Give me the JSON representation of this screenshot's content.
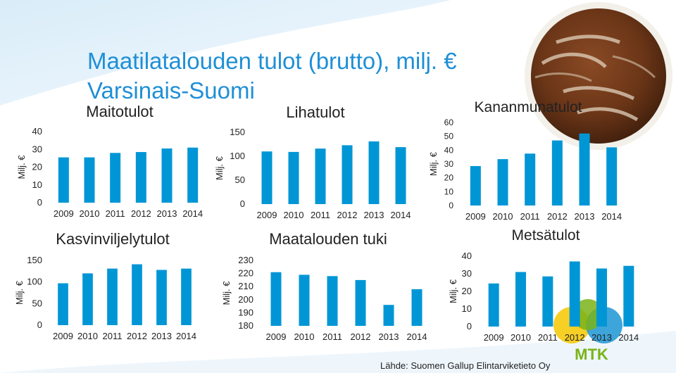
{
  "page": {
    "title_line1": "Maatilatalouden tulot (brutto), milj. €",
    "title_line2": "Varsinais-Suomi",
    "source": "Lähde: Suomen Gallup Elintarviketieto Oy",
    "logo_text": "MTK"
  },
  "colors": {
    "bar": "#0096d6",
    "title": "#1f8fd6",
    "slide_bg": "#eaf4fb",
    "logo_green": "#7ab317",
    "logo_yellow": "#f6c800",
    "logo_blue": "#1c95d4"
  },
  "chart_data": [
    {
      "type": "bar",
      "title": "Maitotulot",
      "ylabel": "Milj. €",
      "categories": [
        "2009",
        "2010",
        "2011",
        "2012",
        "2013",
        "2014"
      ],
      "values": [
        25.5,
        25.5,
        28,
        28.5,
        30.5,
        31
      ],
      "ylim": [
        0,
        40
      ],
      "yticks": [
        0,
        10,
        20,
        30,
        40
      ]
    },
    {
      "type": "bar",
      "title": "Lihatulot",
      "ylabel": "Milj. €",
      "categories": [
        "2009",
        "2010",
        "2011",
        "2012",
        "2013",
        "2014"
      ],
      "values": [
        110,
        109,
        116,
        123,
        131,
        119
      ],
      "ylim": [
        0,
        150
      ],
      "yticks": [
        0,
        50,
        100,
        150
      ]
    },
    {
      "type": "bar",
      "title": "Kananmunatulot",
      "ylabel": "Milj. €",
      "categories": [
        "2009",
        "2010",
        "2011",
        "2012",
        "2013",
        "2014"
      ],
      "values": [
        28.5,
        33.5,
        37.5,
        47,
        52,
        42
      ],
      "ylim": [
        0,
        60
      ],
      "yticks": [
        0,
        10,
        20,
        30,
        40,
        50,
        60
      ]
    },
    {
      "type": "bar",
      "title": "Kasvinviljelytulot",
      "ylabel": "Milj. €",
      "categories": [
        "2009",
        "2010",
        "2011",
        "2012",
        "2013",
        "2014"
      ],
      "values": [
        97,
        120,
        131,
        141,
        128,
        131
      ],
      "ylim": [
        0,
        150
      ],
      "yticks": [
        0,
        50,
        100,
        150
      ]
    },
    {
      "type": "bar",
      "title": "Maatalouden tuki",
      "ylabel": "Milj. €",
      "categories": [
        "2009",
        "2010",
        "2011",
        "2012",
        "2013",
        "2014"
      ],
      "values": [
        221,
        219,
        218,
        215,
        196,
        208
      ],
      "ylim": [
        180,
        230
      ],
      "yticks": [
        180,
        190,
        200,
        210,
        220,
        230
      ]
    },
    {
      "type": "bar",
      "title": "Metsätulot",
      "ylabel": "Milj. €",
      "categories": [
        "2009",
        "2010",
        "2011",
        "2012",
        "2013",
        "2014"
      ],
      "values": [
        24.5,
        31,
        28.5,
        37,
        33,
        34.5
      ],
      "ylim": [
        0,
        40
      ],
      "yticks": [
        0,
        10,
        20,
        30,
        40
      ]
    }
  ]
}
